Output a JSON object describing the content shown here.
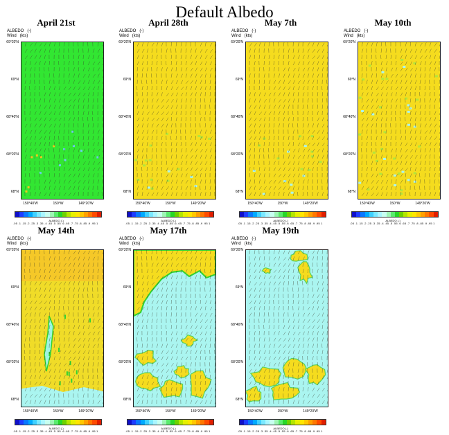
{
  "title": "Default Albedo",
  "meta": {
    "line1": "ALBEDO   (-)",
    "line2": "Wind   (kts)"
  },
  "axes": {
    "y_ticks": [
      "69°20'N",
      "69°N",
      "68°40'N",
      "68°20'N",
      "68°N"
    ],
    "x_ticks": [
      "150°40'W",
      "150°W",
      "149°20'W"
    ]
  },
  "colorbar": {
    "title": "ALBEDO  (-)",
    "ticks_text": ".05 .1 .15 .2 .25 .3 .35 .4 .45 .5 .55 .6 .65 .7 .75 .8 .85 .9 .95 1",
    "colors": [
      "#1010c8",
      "#1e3cff",
      "#0a78ff",
      "#00aaff",
      "#40d0ff",
      "#7be8ff",
      "#aaf5ff",
      "#c8fff0",
      "#9ef5b4",
      "#5aeb6e",
      "#28d728",
      "#6ed200",
      "#b4e600",
      "#e6f000",
      "#ffe600",
      "#ffc800",
      "#ffa000",
      "#ff7800",
      "#ff4b00",
      "#e11e00"
    ]
  },
  "panels": [
    {
      "title": "April 21st",
      "scene": "green"
    },
    {
      "title": "April 28th",
      "scene": "yellow"
    },
    {
      "title": "May 7th",
      "scene": "yellow"
    },
    {
      "title": "May 10th",
      "scene": "yellow-speckle"
    },
    {
      "title": "May 14th",
      "scene": "yellow-streak"
    },
    {
      "title": "May 17th",
      "scene": "melt1"
    },
    {
      "title": "May 19th",
      "scene": "melt2"
    }
  ]
}
